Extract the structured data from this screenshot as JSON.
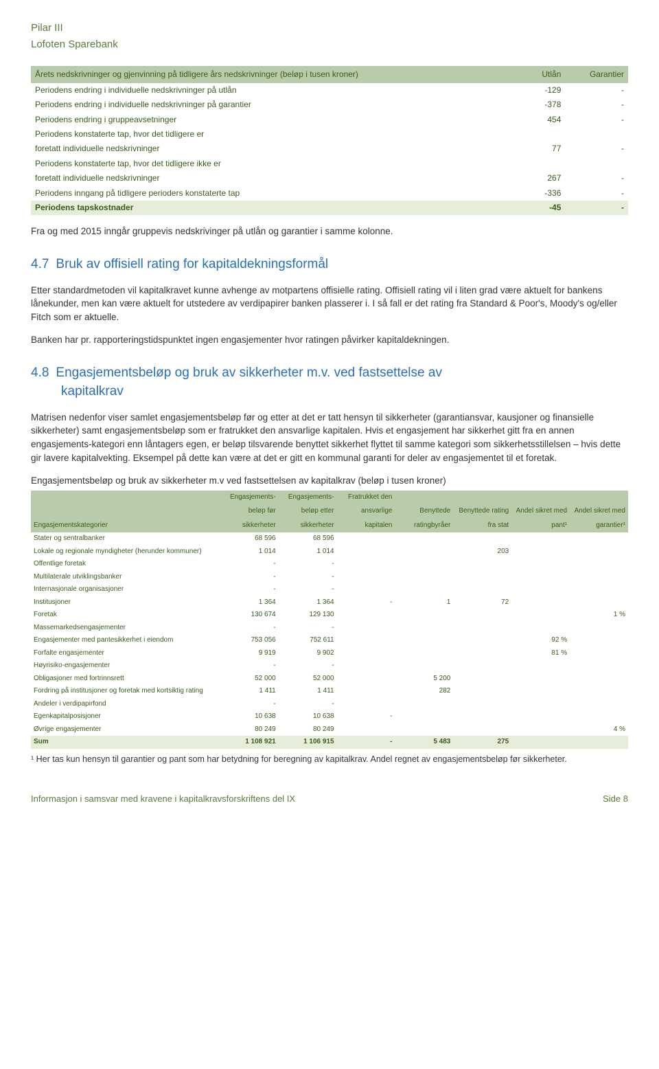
{
  "header": {
    "line1": "Pilar III",
    "line2": "Lofoten Sparebank"
  },
  "table1": {
    "cols": [
      "Årets nedskrivninger og gjenvinning på tidligere års nedskrivninger (beløp i tusen kroner)",
      "Utlån",
      "Garantier"
    ],
    "rows": [
      {
        "label": "Periodens endring i individuelle nedskrivninger på utlån",
        "utlan": "-129",
        "gar": "-"
      },
      {
        "label": "Periodens endring i individuelle nedskrivninger på garantier",
        "utlan": "-378",
        "gar": "-"
      },
      {
        "label": "Periodens endring i gruppeavsetninger",
        "utlan": "454",
        "gar": "-"
      },
      {
        "label": "Periodens konstaterte tap, hvor det tidligere er",
        "utlan": "",
        "gar": ""
      },
      {
        "label": "foretatt individuelle nedskrivninger",
        "utlan": "77",
        "gar": "-"
      },
      {
        "label": "Periodens konstaterte tap, hvor det tidligere ikke er",
        "utlan": "",
        "gar": ""
      },
      {
        "label": "foretatt individuelle nedskrivninger",
        "utlan": "267",
        "gar": "-"
      },
      {
        "label": "Periodens inngang på tidligere perioders konstaterte tap",
        "utlan": "-336",
        "gar": "-"
      }
    ],
    "total": {
      "label": "Periodens tapskostnader",
      "utlan": "-45",
      "gar": "-"
    }
  },
  "intro_line": "Fra og med 2015 inngår gruppevis nedskrivinger på utlån og garantier i samme kolonne.",
  "sec47": {
    "num": "4.7",
    "title": "Bruk av offisiell rating for kapitaldekningsformål",
    "p1": "Etter standardmetoden vil kapitalkravet kunne avhenge av motpartens offisielle rating. Offisiell rating vil i liten grad være aktuelt for bankens lånekunder, men kan være aktuelt for utstedere av verdipapirer banken plasserer i. I så fall er det rating fra Standard & Poor's, Moody's og/eller Fitch som er aktuelle.",
    "p2": "Banken har pr. rapporteringstidspunktet ingen engasjementer hvor ratingen påvirker kapitaldekningen."
  },
  "sec48": {
    "num": "4.8",
    "title_line1": "Engasjementsbeløp og bruk av sikkerheter m.v. ved fastsettelse av",
    "title_line2": "kapitalkrav",
    "p1": "Matrisen nedenfor viser samlet engasjementsbeløp før og etter at det er tatt hensyn til sikkerheter (garantiansvar, kausjoner og finansielle sikkerheter) samt engasjementsbeløp som er fratrukket den ansvarlige kapitalen. Hvis et engasjement har sikkerhet gitt fra en annen engasjements-kategori enn låntagers egen, er beløp tilsvarende benyttet sikkerhet flyttet til samme kategori som sikkerhetsstillelsen – hvis dette gir lavere kapitalvekting. Eksempel på dette kan være at det er gitt en kommunal garanti for deler av engasjementet til et foretak."
  },
  "table2": {
    "title": "Engasjementsbeløp og bruk av sikkerheter m.v ved fastsettelsen av kapitalkrav (beløp i tusen kroner)",
    "cols": {
      "c0": "Engasjementskategorier",
      "c1a": "Engasjements-",
      "c1b": "beløp før",
      "c1c": "sikkerheter",
      "c2a": "Engasjements-",
      "c2b": "beløp etter",
      "c2c": "sikkerheter",
      "c3a": "Fratrukket den",
      "c3b": "ansvarlige",
      "c3c": "kapitalen",
      "c4a": "Benyttede",
      "c4b": "ratingbyråer",
      "c5a": "Benyttede rating",
      "c5b": "fra stat",
      "c6a": "Andel sikret med",
      "c6b": "pant¹",
      "c7a": "Andel sikret med",
      "c7b": "garantier¹"
    },
    "rows": [
      {
        "k": "Stater og sentralbanker",
        "v": [
          "68 596",
          "68 596",
          "",
          "",
          "",
          "",
          ""
        ]
      },
      {
        "k": "Lokale og regionale myndigheter (herunder kommuner)",
        "v": [
          "1 014",
          "1 014",
          "",
          "",
          "203",
          "",
          ""
        ]
      },
      {
        "k": "Offentlige foretak",
        "v": [
          "-",
          "-",
          "",
          "",
          "",
          "",
          ""
        ]
      },
      {
        "k": "Multilaterale utviklingsbanker",
        "v": [
          "-",
          "-",
          "",
          "",
          "",
          "",
          ""
        ]
      },
      {
        "k": "Internasjonale organisasjoner",
        "v": [
          "-",
          "-",
          "",
          "",
          "",
          "",
          ""
        ]
      },
      {
        "k": "Institusjoner",
        "v": [
          "1 364",
          "1 364",
          "-",
          "1",
          "72",
          "",
          ""
        ]
      },
      {
        "k": "Foretak",
        "v": [
          "130 674",
          "129 130",
          "",
          "",
          "",
          "",
          "1 %"
        ]
      },
      {
        "k": "Massemarkedsengasjementer",
        "v": [
          "-",
          "-",
          "",
          "",
          "",
          "",
          ""
        ]
      },
      {
        "k": "Engasjementer med pantesikkerhet i eiendom",
        "v": [
          "753 056",
          "752 611",
          "",
          "",
          "",
          "92 %",
          ""
        ]
      },
      {
        "k": "Forfalte engasjementer",
        "v": [
          "9 919",
          "9 902",
          "",
          "",
          "",
          "81 %",
          ""
        ]
      },
      {
        "k": "Høyrisiko-engasjementer",
        "v": [
          "-",
          "-",
          "",
          "",
          "",
          "",
          ""
        ]
      },
      {
        "k": "Obligasjoner med fortrinnsrett",
        "v": [
          "52 000",
          "52 000",
          "",
          "5 200",
          "",
          "",
          ""
        ]
      },
      {
        "k": "Fordring på institusjoner og foretak med kortsiktig rating",
        "v": [
          "1 411",
          "1 411",
          "",
          "282",
          "",
          "",
          ""
        ]
      },
      {
        "k": "Andeler i verdipapirfond",
        "v": [
          "-",
          "-",
          "",
          "",
          "",
          "",
          ""
        ]
      },
      {
        "k": "Egenkapitalposisjoner",
        "v": [
          "10 638",
          "10 638",
          "-",
          "",
          "",
          "",
          ""
        ]
      },
      {
        "k": "Øvrige engasjementer",
        "v": [
          "80 249",
          "80 249",
          "",
          "",
          "",
          "",
          "4 %"
        ]
      }
    ],
    "sum": {
      "k": "Sum",
      "v": [
        "1 108 921",
        "1 106 915",
        "-",
        "5 483",
        "275",
        "",
        ""
      ]
    },
    "footnote": "¹ Her tas kun hensyn til garantier og pant som har betydning for beregning av kapitalkrav. Andel regnet av engasjementsbeløp før sikkerheter."
  },
  "footer": {
    "left": "Informasjon i samsvar med kravene i kapitalkravsforskriftens del IX",
    "right": "Side 8"
  }
}
